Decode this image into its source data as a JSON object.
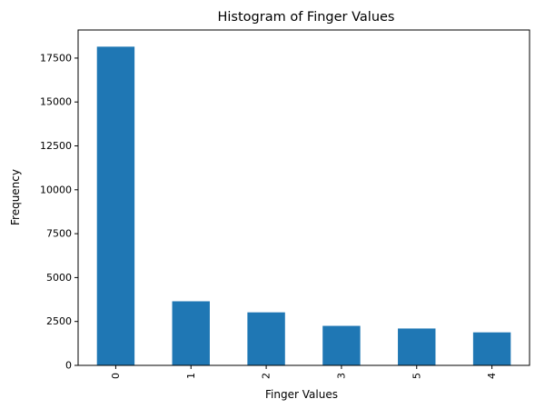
{
  "chart_data": {
    "type": "bar",
    "title": "Histogram of Finger Values",
    "xlabel": "Finger Values",
    "ylabel": "Frequency",
    "categories": [
      "0",
      "1",
      "2",
      "3",
      "5",
      "4"
    ],
    "values": [
      18150,
      3650,
      3020,
      2250,
      2100,
      1880
    ],
    "ylim": [
      0,
      19100
    ],
    "yticks": [
      0,
      2500,
      5000,
      7500,
      10000,
      12500,
      15000,
      17500
    ],
    "grid": false,
    "legend": "none",
    "bar_color": "#1f77b4"
  }
}
